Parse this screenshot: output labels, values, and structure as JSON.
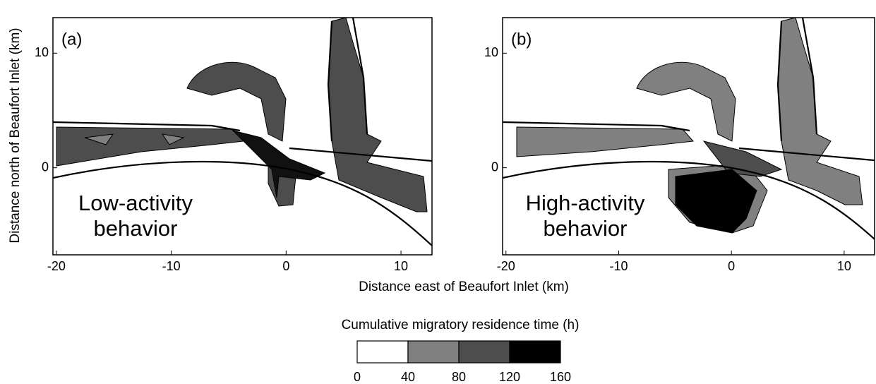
{
  "chart_data": [
    {
      "type": "contour",
      "panel_label": "(a)",
      "annotation": [
        "Low-activity",
        "behavior"
      ],
      "xlim": [
        -20.3,
        12.7
      ],
      "ylim": [
        -7.6,
        13.1
      ],
      "xticks": [
        -20,
        -10,
        0,
        10
      ],
      "yticks": [
        0,
        10
      ]
    },
    {
      "type": "contour",
      "panel_label": "(b)",
      "annotation": [
        "High-activity",
        "behavior"
      ],
      "xlim": [
        -20.3,
        12.7
      ],
      "ylim": [
        -7.6,
        13.1
      ],
      "xticks": [
        -20,
        -10,
        0,
        10
      ],
      "yticks": [
        0,
        10
      ]
    }
  ],
  "x_label": "Distance east of Beaufort Inlet (km)",
  "y_label": "Distance north of Beaufort Inlet (km)",
  "colorbar": {
    "title": "Cumulative migratory residence time (h)",
    "bins": [
      0,
      40,
      80,
      120,
      160
    ],
    "colors": [
      "#ffffff",
      "#808080",
      "#4d4d4d",
      "#000000"
    ]
  }
}
